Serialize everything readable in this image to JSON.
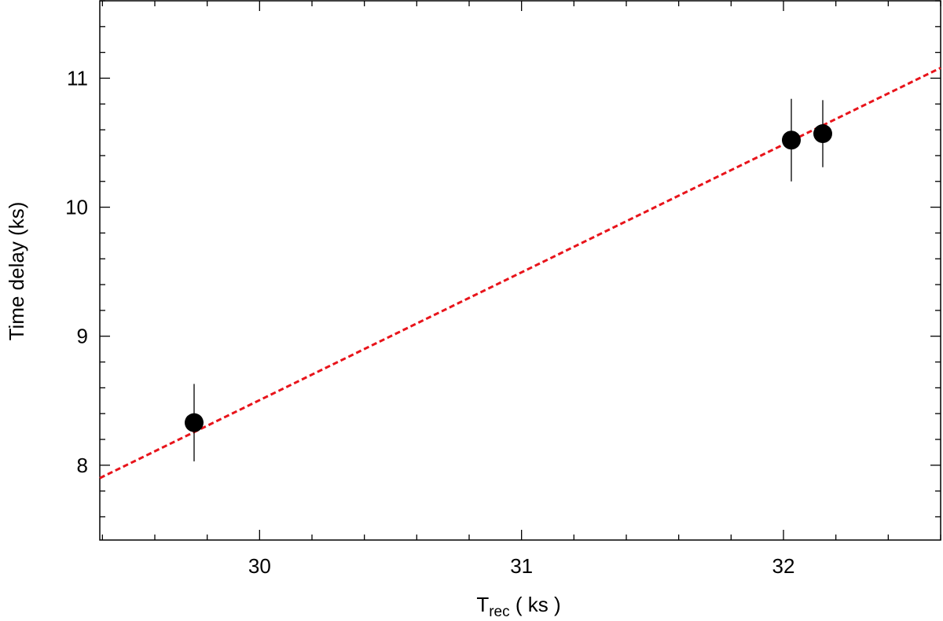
{
  "chart_data": {
    "type": "scatter",
    "xlabel": {
      "main": "T",
      "sub": "rec",
      "tail": " ( ks )"
    },
    "ylabel": "Time delay (ks)",
    "xlim": [
      29.39,
      32.6
    ],
    "ylim": [
      7.42,
      11.6
    ],
    "xticks": [
      30,
      31,
      32
    ],
    "yticks": [
      8,
      9,
      10,
      11
    ],
    "minor_xticks": [
      29.4,
      29.6,
      29.8,
      30.2,
      30.4,
      30.6,
      30.8,
      31.2,
      31.4,
      31.6,
      31.8,
      32.2,
      32.4,
      32.6
    ],
    "minor_yticks": [
      7.6,
      7.8,
      8.2,
      8.4,
      8.6,
      8.8,
      9.2,
      9.4,
      9.6,
      9.8,
      10.2,
      10.4,
      10.6,
      10.8,
      11.2,
      11.4,
      11.6
    ],
    "series": [
      {
        "type": "scatter",
        "color": "#000000",
        "x": [
          29.75,
          32.03,
          32.15
        ],
        "values": [
          8.33,
          10.52,
          10.57
        ],
        "errors": [
          0.3,
          0.32,
          0.26
        ]
      },
      {
        "type": "line",
        "color": "#e8141b",
        "dashed": true,
        "x": [
          29.39,
          32.6
        ],
        "values": [
          7.9,
          11.08
        ]
      }
    ]
  }
}
